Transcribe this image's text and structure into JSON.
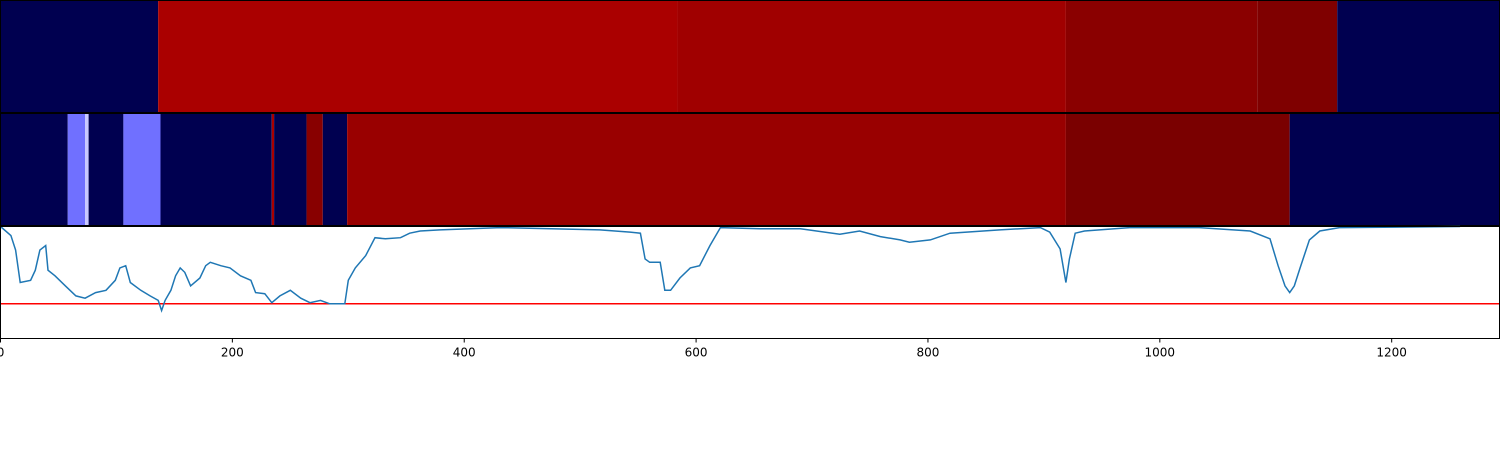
{
  "chart_data": {
    "type": "segments-line",
    "xlim": [
      0,
      1293
    ],
    "xticks": [
      0,
      200,
      400,
      600,
      800,
      1000,
      1200
    ],
    "strips": [
      {
        "segments": [
          {
            "start": 0,
            "end": 136,
            "color": "#000050"
          },
          {
            "start": 136,
            "end": 584,
            "color": "#aa0000"
          },
          {
            "start": 584,
            "end": 919,
            "color": "#a00000"
          },
          {
            "start": 919,
            "end": 1084,
            "color": "#8a0000"
          },
          {
            "start": 1084,
            "end": 1153,
            "color": "#7f0000"
          },
          {
            "start": 1153,
            "end": 1293,
            "color": "#000050"
          }
        ]
      },
      {
        "segments": [
          {
            "start": 0,
            "end": 58,
            "color": "#000050"
          },
          {
            "start": 58,
            "end": 73,
            "color": "#7070ff"
          },
          {
            "start": 73,
            "end": 76,
            "color": "#c8c8ff"
          },
          {
            "start": 76,
            "end": 106,
            "color": "#000050"
          },
          {
            "start": 106,
            "end": 138,
            "color": "#7070ff"
          },
          {
            "start": 138,
            "end": 234,
            "color": "#000050"
          },
          {
            "start": 234,
            "end": 236,
            "color": "#aa0000"
          },
          {
            "start": 236,
            "end": 264,
            "color": "#000050"
          },
          {
            "start": 264,
            "end": 278,
            "color": "#880000"
          },
          {
            "start": 278,
            "end": 299,
            "color": "#000050"
          },
          {
            "start": 299,
            "end": 919,
            "color": "#990000"
          },
          {
            "start": 919,
            "end": 1112,
            "color": "#7a0000"
          },
          {
            "start": 1112,
            "end": 1293,
            "color": "#000050"
          }
        ]
      }
    ],
    "ylim": [
      0,
      1
    ],
    "hline": {
      "value": 0.31,
      "color": "#ff0000"
    },
    "series": [
      {
        "color": "#1f77b4",
        "x": [
          0,
          9,
          13,
          17,
          26,
          30,
          34,
          39,
          41,
          47,
          56,
          65,
          73,
          82,
          91,
          99,
          103,
          108,
          112,
          121,
          129,
          136,
          139,
          142,
          147,
          151,
          155,
          159,
          164,
          172,
          177,
          181,
          190,
          198,
          207,
          216,
          220,
          228,
          234,
          241,
          250,
          259,
          267,
          276,
          284,
          297,
          300,
          306,
          315,
          323,
          332,
          345,
          353,
          362,
          379,
          431,
          517,
          543,
          552,
          556,
          560,
          569,
          573,
          578,
          586,
          595,
          603,
          612,
          621,
          655,
          690,
          724,
          741,
          759,
          776,
          784,
          802,
          819,
          862,
          897,
          905,
          914,
          919,
          922,
          927,
          935,
          948,
          974,
          1034,
          1078,
          1095,
          1102,
          1108,
          1112,
          1116,
          1121,
          1129,
          1138,
          1155,
          1259
        ],
        "values": [
          1.0,
          0.92,
          0.79,
          0.5,
          0.52,
          0.61,
          0.79,
          0.83,
          0.61,
          0.56,
          0.47,
          0.38,
          0.36,
          0.41,
          0.43,
          0.52,
          0.63,
          0.65,
          0.5,
          0.43,
          0.38,
          0.34,
          0.25,
          0.34,
          0.43,
          0.56,
          0.63,
          0.59,
          0.47,
          0.54,
          0.65,
          0.68,
          0.65,
          0.63,
          0.56,
          0.52,
          0.41,
          0.4,
          0.32,
          0.38,
          0.43,
          0.36,
          0.32,
          0.34,
          0.31,
          0.31,
          0.52,
          0.63,
          0.74,
          0.9,
          0.89,
          0.9,
          0.94,
          0.96,
          0.97,
          0.99,
          0.97,
          0.95,
          0.94,
          0.71,
          0.68,
          0.68,
          0.43,
          0.43,
          0.54,
          0.63,
          0.65,
          0.83,
          0.99,
          0.98,
          0.98,
          0.93,
          0.96,
          0.91,
          0.88,
          0.86,
          0.88,
          0.94,
          0.97,
          0.99,
          0.95,
          0.8,
          0.5,
          0.71,
          0.94,
          0.96,
          0.97,
          0.99,
          0.99,
          0.96,
          0.89,
          0.65,
          0.47,
          0.41,
          0.47,
          0.63,
          0.88,
          0.96,
          0.99,
          1.0
        ]
      }
    ]
  }
}
